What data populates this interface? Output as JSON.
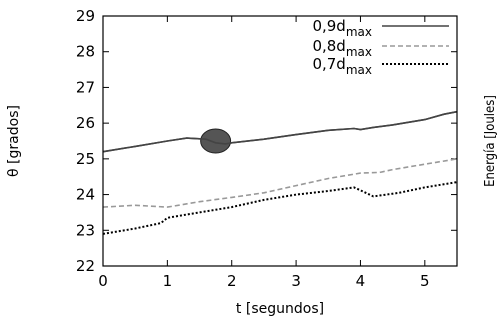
{
  "chart_data": {
    "type": "line",
    "xlabel": "t [segundos]",
    "ylabel": "θ [grados]",
    "right_label": "Energía [Joules]",
    "xlim": [
      0,
      5.5
    ],
    "ylim": [
      22,
      29
    ],
    "xticks": [
      0,
      1,
      2,
      3,
      4,
      5
    ],
    "yticks": [
      22,
      23,
      24,
      25,
      26,
      27,
      28,
      29
    ],
    "grid": false,
    "legend_position": "top-right",
    "series": [
      {
        "name": "0,9d",
        "subscript": "max",
        "color": "#444444",
        "style": "solid",
        "x": [
          0,
          0.5,
          1.0,
          1.3,
          1.6,
          1.75,
          1.9,
          2.0,
          2.5,
          3.0,
          3.5,
          3.9,
          4.0,
          4.2,
          4.5,
          5.0,
          5.3,
          5.5
        ],
        "y": [
          25.2,
          25.35,
          25.5,
          25.58,
          25.55,
          25.45,
          25.42,
          25.45,
          25.55,
          25.68,
          25.8,
          25.85,
          25.82,
          25.88,
          25.95,
          26.1,
          26.25,
          26.32
        ]
      },
      {
        "name": "0,8d",
        "subscript": "max",
        "color": "#999999",
        "style": "dashed",
        "x": [
          0,
          0.5,
          1.0,
          1.5,
          2.0,
          2.5,
          3.0,
          3.5,
          4.0,
          4.3,
          4.5,
          5.0,
          5.5
        ],
        "y": [
          23.65,
          23.7,
          23.65,
          23.8,
          23.92,
          24.05,
          24.25,
          24.45,
          24.6,
          24.62,
          24.7,
          24.85,
          25.0
        ]
      },
      {
        "name": "0,7d",
        "subscript": "max",
        "color": "#000000",
        "style": "dotted",
        "x": [
          0,
          0.5,
          0.9,
          1.0,
          1.5,
          2.0,
          2.5,
          3.0,
          3.5,
          3.9,
          4.0,
          4.2,
          4.4,
          4.6,
          5.0,
          5.5
        ],
        "y": [
          22.9,
          23.05,
          23.2,
          23.35,
          23.5,
          23.65,
          23.85,
          24.0,
          24.1,
          24.2,
          24.12,
          23.95,
          24.0,
          24.05,
          24.2,
          24.35
        ]
      }
    ],
    "highlight_marker": {
      "x": 1.75,
      "y": 25.5,
      "color": "#555555"
    }
  }
}
